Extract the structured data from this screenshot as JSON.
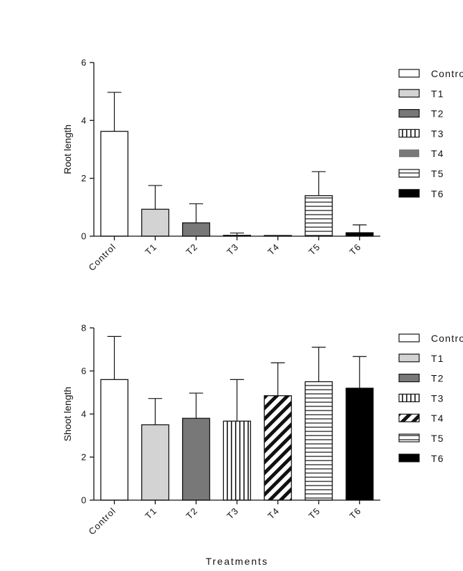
{
  "xlabel": "Treatments",
  "chart_data": [
    {
      "type": "bar",
      "ylabel": "Root length",
      "categories": [
        "Control",
        "T1",
        "T2",
        "T3",
        "T4",
        "T5",
        "T6"
      ],
      "values": [
        3.62,
        0.93,
        0.46,
        0.03,
        0.0,
        1.4,
        0.12
      ],
      "errors": [
        1.35,
        0.82,
        0.66,
        0.08,
        0.0,
        0.83,
        0.27
      ],
      "ylim": [
        0,
        6
      ],
      "yticks": [
        0,
        2,
        4,
        6
      ],
      "legend": [
        "Control",
        "T1",
        "T2",
        "T3",
        "T4",
        "T5",
        "T6"
      ],
      "legend_placement": "right",
      "patterns": [
        "white",
        "lightgray",
        "gray",
        "vertical",
        "gray",
        "horizontal",
        "black"
      ],
      "grid": false
    },
    {
      "type": "bar",
      "ylabel": "Shoot length",
      "categories": [
        "Control",
        "T1",
        "T2",
        "T3",
        "T4",
        "T5",
        "T6"
      ],
      "values": [
        5.6,
        3.5,
        3.8,
        3.67,
        4.85,
        5.5,
        5.2
      ],
      "errors": [
        2.0,
        1.22,
        1.17,
        1.93,
        1.53,
        1.6,
        1.47
      ],
      "ylim": [
        0,
        8
      ],
      "yticks": [
        0,
        2,
        4,
        6,
        8
      ],
      "legend": [
        "Control",
        "T1",
        "T2",
        "T3",
        "T4",
        "T5",
        "T6"
      ],
      "legend_placement": "right",
      "patterns": [
        "white",
        "lightgray",
        "gray",
        "vertical",
        "diagonal",
        "horizontal",
        "black"
      ],
      "grid": false
    }
  ]
}
